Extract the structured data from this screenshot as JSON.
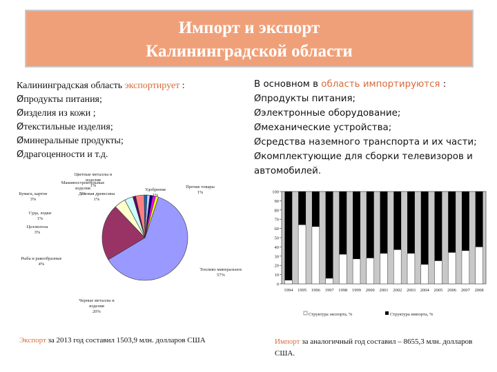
{
  "title": {
    "line1": "Импорт и экспорт",
    "line2": "Калининградской области"
  },
  "left": {
    "intro_prefix": "Калининградская область ",
    "intro_accent": "экспортирует",
    "intro_suffix": " :",
    "bullet": "Ø",
    "items": [
      "продукты питания;",
      "изделия из кожи ;",
      "текстильные изделия;",
      "минеральные продукты;",
      "драгоценности и т.д."
    ]
  },
  "right": {
    "intro_prefix": "В основном в ",
    "intro_accent": "область импортируются",
    "intro_suffix": " :",
    "bullet": "Ø",
    "items": [
      "продукты питания;",
      "электронные оборудование;",
      "механические устройства;",
      "средства наземного транспорта и их части;",
      "комплектующие для сборки телевизоров и автомобилей."
    ]
  },
  "footer": {
    "left_accent": "Экспорт",
    "left_text": " за 2013 год составил 1503,9 млн. долларов США",
    "right_accent": "Импорт",
    "right_text": " за аналогичный год составил – 8655,3 млн. долларов США."
  },
  "chart_data": [
    {
      "type": "pie",
      "slices": [
        {
          "label": "Топливо минеральное",
          "value": 57,
          "color": "#9999ff"
        },
        {
          "label": "Черные металлы и изделия",
          "value": 20,
          "color": "#993366"
        },
        {
          "label": "Рыба и ракообразные",
          "value": 4,
          "color": "#ffffcc"
        },
        {
          "label": "Целлюлоза",
          "value": 3,
          "color": "#ccffff"
        },
        {
          "label": "Суда, лодки",
          "value": 1,
          "color": "#660066"
        },
        {
          "label": "Бумага, картон",
          "value": 3,
          "color": "#ff8080"
        },
        {
          "label": "Деловая древесина",
          "value": 1,
          "color": "#0066cc"
        },
        {
          "label": "Цветные металлы и изделия",
          "value": 1,
          "color": "#ccccff"
        },
        {
          "label": "Машиностроительные изделия",
          "value": 1,
          "color": "#000080"
        },
        {
          "label": "Удобрения",
          "value": 1,
          "color": "#ff00ff"
        },
        {
          "label": "Прочие товары",
          "value": 1,
          "color": "#ffff00"
        }
      ],
      "label_texts": [
        {
          "name": "Цветные металлы и",
          "sub": "изделия",
          "pct": "1%"
        },
        {
          "name": "Машиностроительные",
          "sub": "изделия",
          "pct": "1%"
        },
        {
          "name": "Деловая древесина",
          "sub": "",
          "pct": "1%"
        },
        {
          "name": "Бумага, картон",
          "sub": "",
          "pct": "3%"
        },
        {
          "name": "Суда, лодки",
          "sub": "",
          "pct": "1%"
        },
        {
          "name": "Целлюлоза",
          "sub": "",
          "pct": "3%"
        },
        {
          "name": "Рыба и ракообразные",
          "sub": "",
          "pct": "4%"
        },
        {
          "name": "Черные металлы и",
          "sub": "изделия",
          "pct": "20%"
        },
        {
          "name": "Топливо минеральное",
          "sub": "",
          "pct": "57%"
        },
        {
          "name": "Удобрения",
          "sub": "",
          "pct": "1%"
        },
        {
          "name": "Прочие товары",
          "sub": "",
          "pct": "1%"
        }
      ]
    },
    {
      "type": "bar",
      "stacked": true,
      "categories": [
        "1994",
        "1995",
        "1996",
        "1997",
        "1998",
        "1999",
        "2000",
        "2001",
        "2002",
        "2003",
        "2004",
        "2005",
        "2006",
        "2007",
        "2008"
      ],
      "series": [
        {
          "name": "Структура экспорта, %",
          "color": "#ffffff",
          "values": [
            4,
            64,
            62,
            6,
            32,
            27,
            28,
            33,
            37,
            33,
            21,
            25,
            34,
            36,
            40
          ]
        },
        {
          "name": "Структура импорта, %",
          "color": "#000000",
          "values": [
            96,
            36,
            38,
            94,
            68,
            73,
            72,
            67,
            63,
            67,
            79,
            75,
            66,
            64,
            60
          ]
        }
      ],
      "ylim": [
        0,
        100
      ],
      "yticks": [
        0,
        10,
        20,
        30,
        40,
        50,
        60,
        70,
        80,
        90,
        100
      ],
      "legend": "bottom",
      "legend_text": "□ Структура экспорта, %  ■ Структура импорта, %"
    }
  ]
}
